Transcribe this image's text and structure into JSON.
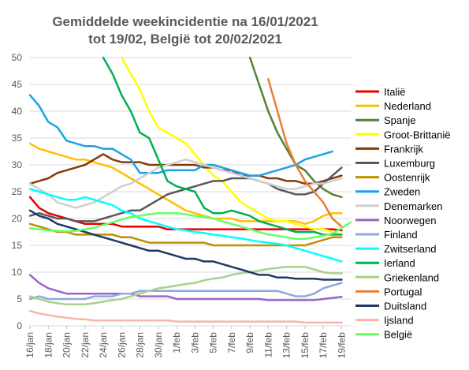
{
  "chart_data": {
    "type": "line",
    "title": "Gemiddelde weekincidentie  na 16/01/2021",
    "subtitle": "tot 19/02, België tot 20/02/2021",
    "xlabel": "",
    "ylabel": "",
    "ylim": [
      0,
      50
    ],
    "yticks": [
      0,
      5,
      10,
      15,
      20,
      25,
      30,
      35,
      40,
      45,
      50
    ],
    "x": [
      "16/jan",
      "17/jan",
      "18/jan",
      "19/jan",
      "20/jan",
      "21/jan",
      "22/jan",
      "23/jan",
      "24/jan",
      "25/jan",
      "26/jan",
      "27/jan",
      "28/jan",
      "29/jan",
      "30/jan",
      "31/jan",
      "1/feb",
      "2/feb",
      "3/feb",
      "4/feb",
      "5/feb",
      "6/feb",
      "7/feb",
      "8/feb",
      "9/feb",
      "10/feb",
      "11/feb",
      "12/feb",
      "13/feb",
      "14/feb",
      "15/feb",
      "16/feb",
      "17/feb",
      "18/feb",
      "19/feb",
      "20/feb"
    ],
    "xtick_labels": [
      "16/jan",
      "18/jan",
      "20/jan",
      "22/jan",
      "24/jan",
      "26/jan",
      "28/jan",
      "30/jan",
      "1/feb",
      "3/feb",
      "5/feb",
      "7/feb",
      "9/feb",
      "11/feb",
      "13/feb",
      "15/feb",
      "17/feb",
      "19/feb"
    ],
    "grid": true,
    "legend_position": "right",
    "series": [
      {
        "name": "Italië",
        "color": "#e60000",
        "values": [
          24,
          22,
          21,
          20.5,
          20,
          19.5,
          19,
          19,
          19,
          19,
          18.5,
          18.5,
          18.5,
          18.5,
          18.5,
          18,
          18,
          18,
          18,
          18,
          18,
          18,
          18,
          18,
          18,
          18,
          18,
          18,
          18,
          18,
          18,
          18,
          18,
          18,
          17.8,
          null
        ]
      },
      {
        "name": "Nederland",
        "color": "#ffc000",
        "values": [
          34,
          33,
          32.5,
          32,
          31.5,
          31,
          31,
          30.5,
          30,
          29.5,
          28.5,
          27.5,
          26.5,
          25.5,
          24.5,
          23.5,
          22.5,
          21.5,
          21,
          20.5,
          20,
          20,
          20,
          19.5,
          19.5,
          19.5,
          19.5,
          19.5,
          19.5,
          19.5,
          19,
          19.5,
          20.5,
          21,
          21,
          null
        ]
      },
      {
        "name": "Spanje",
        "color": "#548235",
        "values": [
          null,
          null,
          null,
          null,
          null,
          null,
          null,
          null,
          null,
          null,
          null,
          null,
          null,
          null,
          null,
          null,
          null,
          null,
          null,
          null,
          null,
          null,
          null,
          null,
          50,
          45,
          40,
          36,
          33,
          30,
          29,
          27,
          25.5,
          24.5,
          24,
          null
        ]
      },
      {
        "name": "Groot-Brittanië",
        "color": "#ffff00",
        "values": [
          null,
          null,
          null,
          null,
          null,
          null,
          null,
          null,
          null,
          null,
          50,
          47,
          44,
          40,
          37,
          36,
          35,
          34,
          32,
          30,
          28,
          27,
          25,
          23,
          22,
          21,
          20,
          19.5,
          19.5,
          19,
          18.5,
          18,
          18,
          17.5,
          17,
          null
        ]
      },
      {
        "name": "Frankrijk",
        "color": "#843c0c",
        "values": [
          26.5,
          27,
          27.5,
          28.5,
          29,
          29.5,
          30,
          31,
          32,
          31,
          30.5,
          30.5,
          30.5,
          30,
          30,
          30,
          30,
          30,
          30,
          29.5,
          29.5,
          29,
          29,
          28,
          28,
          28,
          27.5,
          27.5,
          27,
          27,
          26.5,
          26.5,
          27,
          27.5,
          28,
          null
        ]
      },
      {
        "name": "Luxemburg",
        "color": "#595959",
        "values": [
          20.5,
          21,
          20.5,
          20,
          20,
          19.5,
          19.5,
          19.5,
          20,
          20.5,
          21,
          21.5,
          21.5,
          22.5,
          23.5,
          24.5,
          25,
          25.5,
          26,
          26.5,
          27,
          27,
          27.5,
          27.5,
          27.5,
          27,
          26.5,
          25.5,
          25,
          24.5,
          24.5,
          25,
          26.5,
          28,
          29.5,
          null
        ]
      },
      {
        "name": "Oostenrijk",
        "color": "#bf9000",
        "values": [
          19,
          18.5,
          18,
          17.5,
          17.5,
          17,
          17,
          17,
          17,
          17,
          16.5,
          16.5,
          16,
          15.5,
          15.5,
          15.5,
          15.5,
          15.5,
          15.5,
          15.5,
          15,
          15,
          15,
          15,
          15,
          15,
          15,
          15,
          15,
          15,
          15,
          15.5,
          16,
          16.5,
          16.5,
          null
        ]
      },
      {
        "name": "Zweden",
        "color": "#1aa3e8",
        "values": [
          43,
          41,
          38,
          37,
          34.5,
          34,
          33.5,
          33.5,
          33,
          33,
          32,
          31,
          28.5,
          28.5,
          28.5,
          29,
          29,
          29,
          29,
          30,
          30,
          29.5,
          29,
          28.5,
          28,
          28,
          28.5,
          29,
          29.5,
          30,
          31,
          31.5,
          32,
          32.5,
          null,
          null
        ]
      },
      {
        "name": "Denemarken",
        "color": "#d0cece",
        "values": [
          26.5,
          25.5,
          24.5,
          23,
          22.5,
          22,
          22.5,
          23,
          24,
          25,
          26,
          26.5,
          27.5,
          28.5,
          29.5,
          30,
          30.5,
          31,
          30.5,
          30,
          29.5,
          29,
          28.5,
          28,
          27.5,
          27,
          26.5,
          26,
          25.5,
          25.5,
          26,
          26.5,
          26.5,
          27,
          27.5,
          null
        ]
      },
      {
        "name": "Noorwegen",
        "color": "#9966cc",
        "values": [
          9.5,
          8,
          7,
          6.5,
          6,
          6,
          6,
          6,
          6,
          6,
          6,
          6,
          5.5,
          5.5,
          5.5,
          5.5,
          5,
          5,
          5,
          5,
          5,
          5,
          5,
          5,
          5,
          5,
          4.8,
          4.8,
          4.8,
          4.8,
          4.8,
          4.8,
          5,
          5.2,
          5.4,
          null
        ]
      },
      {
        "name": "Finland",
        "color": "#8ea9db",
        "values": [
          5,
          5.5,
          5,
          5,
          5,
          5,
          5,
          5.5,
          5.5,
          5.5,
          6,
          6,
          6.5,
          6.5,
          6.5,
          6.5,
          6.5,
          6.5,
          6.5,
          6.5,
          6.5,
          6.5,
          6.5,
          6.5,
          6.5,
          6.5,
          6.5,
          6.5,
          6,
          5.5,
          5.5,
          6,
          7,
          7.5,
          8,
          null
        ]
      },
      {
        "name": "Zwitserland",
        "color": "#00ffff",
        "values": [
          25.5,
          25,
          24.5,
          24,
          23.5,
          23.5,
          24,
          23.5,
          23,
          22.5,
          21.5,
          21,
          20,
          19.5,
          19,
          18.5,
          18,
          17.8,
          17.5,
          17.3,
          17,
          16.8,
          16.5,
          16.3,
          16,
          15.7,
          15.5,
          15.3,
          15,
          14.5,
          14,
          13.5,
          13,
          12.5,
          12,
          null
        ]
      },
      {
        "name": "Ierland",
        "color": "#00b050",
        "values": [
          null,
          null,
          null,
          null,
          null,
          null,
          null,
          null,
          50,
          47,
          43,
          40,
          36,
          35,
          31,
          27,
          26,
          25.5,
          25,
          22,
          21,
          21,
          21.5,
          21,
          20.5,
          19.5,
          19,
          18.5,
          18,
          17.5,
          17.5,
          17.5,
          17,
          17,
          17,
          null
        ]
      },
      {
        "name": "Griekenland",
        "color": "#a9d18e",
        "values": [
          5.5,
          5,
          4.5,
          4.2,
          4,
          4,
          4,
          4.2,
          4.5,
          4.8,
          5,
          5.5,
          6,
          6.5,
          7,
          7.2,
          7.5,
          7.8,
          8,
          8.5,
          8.8,
          9,
          9.5,
          9.8,
          10,
          10.3,
          10.6,
          10.8,
          11,
          11,
          11,
          10.5,
          10,
          9.8,
          9.8,
          null
        ]
      },
      {
        "name": "Portugal",
        "color": "#ed7d31",
        "values": [
          null,
          null,
          null,
          null,
          null,
          null,
          null,
          null,
          null,
          null,
          null,
          null,
          null,
          null,
          null,
          null,
          null,
          null,
          null,
          null,
          null,
          null,
          null,
          null,
          null,
          null,
          46,
          40,
          34,
          30,
          27,
          25,
          23,
          20,
          18.5,
          null
        ]
      },
      {
        "name": "Duitsland",
        "color": "#203864",
        "values": [
          21.5,
          20.5,
          20,
          19,
          18.5,
          18,
          17.5,
          17,
          16.5,
          16,
          15.5,
          15,
          14.5,
          14,
          14,
          13.5,
          13,
          12.5,
          12.5,
          12,
          12,
          11.5,
          11,
          10.5,
          10,
          9.5,
          9.5,
          9,
          9,
          8.8,
          8.8,
          8.8,
          8.6,
          8.6,
          8.6,
          null
        ]
      },
      {
        "name": "Ijsland",
        "color": "#f4b8a8",
        "values": [
          2.8,
          2.3,
          2,
          1.7,
          1.5,
          1.3,
          1.2,
          1,
          1,
          1,
          1,
          1,
          1,
          1,
          1,
          1,
          0.8,
          0.8,
          0.8,
          0.8,
          0.8,
          0.8,
          0.8,
          0.8,
          0.8,
          0.8,
          0.8,
          0.8,
          0.8,
          0.8,
          0.6,
          0.6,
          0.6,
          0.6,
          0.6,
          null
        ]
      },
      {
        "name": "België",
        "color": "#66ff66",
        "values": [
          18.2,
          18,
          17.8,
          17.7,
          17.6,
          17.7,
          18,
          18.3,
          18.8,
          19.3,
          19.8,
          20.3,
          20.5,
          20.8,
          21,
          21,
          21,
          20.8,
          20.5,
          20.3,
          20,
          19.5,
          19,
          18.5,
          18,
          17.5,
          17,
          16.8,
          16.5,
          16.2,
          16.2,
          16.5,
          16.8,
          17.2,
          18.2,
          19.3
        ]
      }
    ]
  }
}
